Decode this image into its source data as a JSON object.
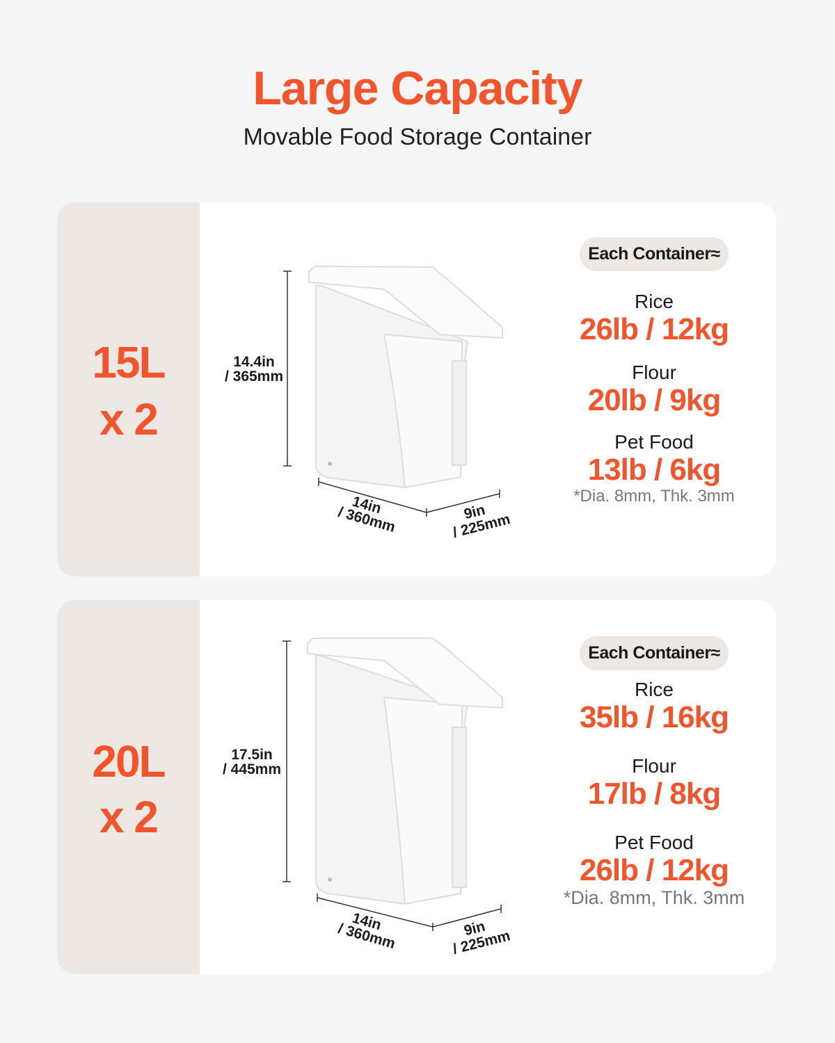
{
  "header": {
    "title": "Large Capacity",
    "subtitle": "Movable Food Storage Container"
  },
  "accent_color": "#f2552c",
  "panels": [
    {
      "capacity": "15L",
      "quantity": "x 2",
      "height_in": "14.4in",
      "height_mm": "/ 365mm",
      "width_in": "14in",
      "width_mm": "/ 360mm",
      "depth_in": "9in",
      "depth_mm": "/ 225mm",
      "badge": "Each Container≈",
      "items": [
        {
          "label": "Rice",
          "value": "26lb / 12kg"
        },
        {
          "label": "Flour",
          "value": "20lb / 9kg"
        },
        {
          "label": "Pet Food",
          "value": "13lb / 6kg"
        }
      ],
      "note": "*Dia. 8mm, Thk. 3mm"
    },
    {
      "capacity": "20L",
      "quantity": "x 2",
      "height_in": "17.5in",
      "height_mm": "/ 445mm",
      "width_in": "14in",
      "width_mm": "/ 360mm",
      "depth_in": "9in",
      "depth_mm": "/ 225mm",
      "badge": "Each Container≈",
      "items": [
        {
          "label": "Rice",
          "value": "35lb / 16kg"
        },
        {
          "label": "Flour",
          "value": "17lb / 8kg"
        },
        {
          "label": "Pet Food",
          "value": "26lb / 12kg"
        }
      ],
      "note": "*Dia. 8mm, Thk. 3mm"
    }
  ]
}
